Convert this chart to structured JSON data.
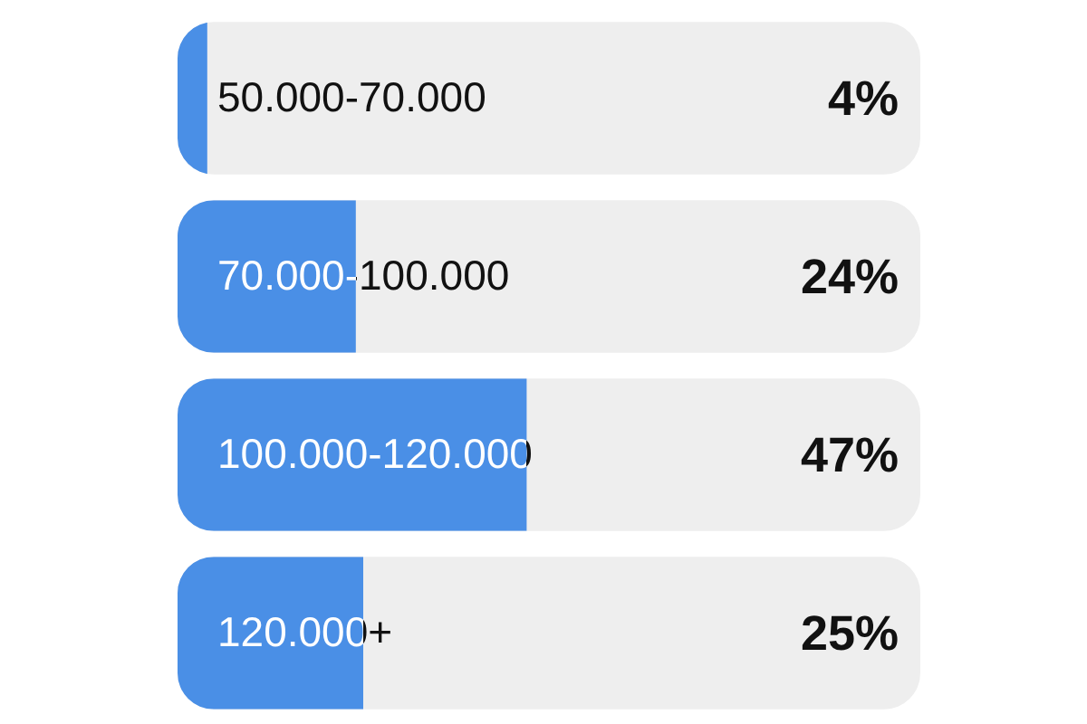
{
  "chart_data": {
    "type": "bar",
    "orientation": "horizontal",
    "categories": [
      "50.000-70.000",
      "70.000-100.000",
      "100.000-120.000",
      "120.000+"
    ],
    "values": [
      4,
      24,
      47,
      25
    ],
    "color": "#4a8fe6",
    "xlim": [
      0,
      100
    ],
    "value_labels": [
      "4%",
      "24%",
      "47%",
      "25%"
    ],
    "tick_labels": "y"
  }
}
